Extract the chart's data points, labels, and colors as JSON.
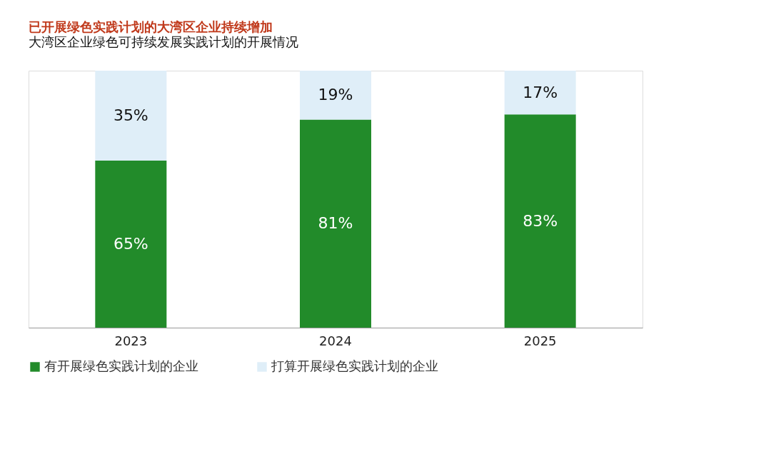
{
  "chart_data": {
    "type": "bar",
    "stacked": true,
    "title": "已开展绿色实践计划的大湾区企业持续增加",
    "subtitle": "大湾区企业绿色可持续发展实践计划的开展情况",
    "categories": [
      "2023",
      "2024",
      "2025"
    ],
    "series": [
      {
        "name": "有开展绿色实践计划的企业",
        "color": "#228b2a",
        "values": [
          65,
          81,
          83
        ],
        "value_labels": [
          "65%",
          "81%",
          "83%"
        ]
      },
      {
        "name": "打算开展绿色实践计划的企业",
        "color": "#dfeef8",
        "values": [
          35,
          19,
          17
        ],
        "value_labels": [
          "35%",
          "19%",
          "17%"
        ]
      }
    ],
    "legend": "bottom",
    "grid": false,
    "tick_labels": "x"
  }
}
